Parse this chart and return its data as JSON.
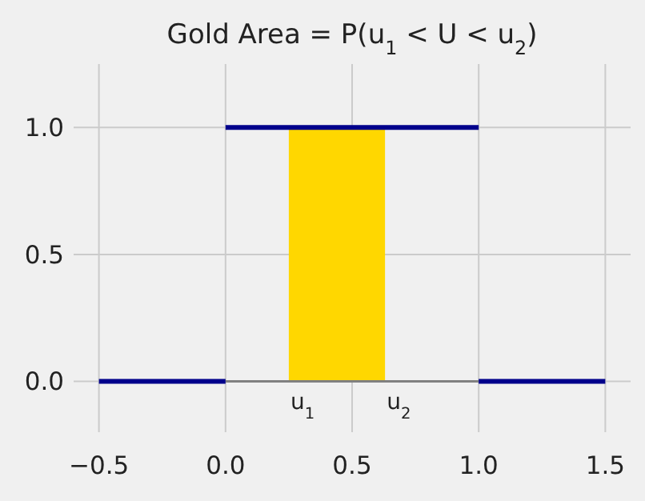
{
  "chart_data": {
    "type": "line",
    "title": "Gold Area = P(u$_{1}$ < U < u$_{2}$)",
    "xlim": [
      -0.6,
      1.6
    ],
    "ylim": [
      -0.2,
      1.25
    ],
    "xticks": [
      {
        "value": -0.5,
        "label": "−0.5"
      },
      {
        "value": 0,
        "label": "0.0"
      },
      {
        "value": 0.5,
        "label": "0.5"
      },
      {
        "value": 1,
        "label": "1.0"
      },
      {
        "value": 1.5,
        "label": "1.5"
      }
    ],
    "yticks": [
      {
        "value": 0,
        "label": "0.0"
      },
      {
        "value": 0.5,
        "label": "0.5"
      },
      {
        "value": 1,
        "label": "1.0"
      }
    ],
    "grid": true,
    "marker": "none",
    "line_style": "solid",
    "series": [
      {
        "type": "area",
        "color": "#ffd700",
        "x": [
          0.25,
          0.63
        ],
        "values": [
          1,
          1
        ]
      },
      {
        "color": "#808080",
        "x": [
          0,
          1
        ],
        "values": [
          0,
          0
        ]
      },
      {
        "color": "#00008b",
        "x": [
          -0.5,
          0
        ],
        "values": [
          0,
          0
        ]
      },
      {
        "color": "#00008b",
        "x": [
          0,
          1
        ],
        "values": [
          1,
          1
        ]
      },
      {
        "color": "#00008b",
        "x": [
          1,
          1.5
        ],
        "values": [
          0,
          0
        ]
      }
    ],
    "annotations": [
      {
        "text": "u$_{1}$",
        "x": 0.25,
        "y": 0
      },
      {
        "text": "u$_{2}$",
        "x": 0.63,
        "y": 0
      }
    ]
  }
}
